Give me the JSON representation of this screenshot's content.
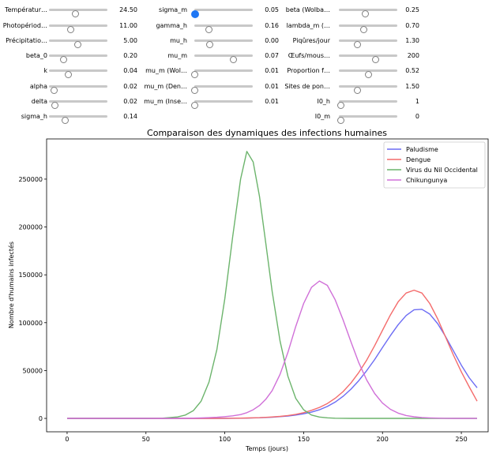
{
  "sliders": [
    {
      "label": "Températur…",
      "value": "24.50",
      "pos": 0.46,
      "active": false
    },
    {
      "label": "Photopériod…",
      "value": "11.00",
      "pos": 0.38,
      "active": false
    },
    {
      "label": "Précipitatio…",
      "value": "5.00",
      "pos": 0.5,
      "active": false
    },
    {
      "label": "beta_0",
      "value": "0.20",
      "pos": 0.26,
      "active": false
    },
    {
      "label": "k",
      "value": "0.04",
      "pos": 0.34,
      "active": false
    },
    {
      "label": "alpha",
      "value": "0.02",
      "pos": 0.1,
      "active": false
    },
    {
      "label": "delta",
      "value": "0.02",
      "pos": 0.11,
      "active": false
    },
    {
      "label": "sigma_h",
      "value": "0.14",
      "pos": 0.28,
      "active": false
    },
    {
      "label": "sigma_m",
      "value": "0.05",
      "pos": 0.02,
      "active": true
    },
    {
      "label": "gamma_h",
      "value": "0.16",
      "pos": 0.26,
      "active": false
    },
    {
      "label": "mu_h",
      "value": "0.00",
      "pos": 0.27,
      "active": false
    },
    {
      "label": "mu_m",
      "value": "0.07",
      "pos": 0.68,
      "active": false
    },
    {
      "label": "mu_m (Wol…",
      "value": "0.01",
      "pos": 0.02,
      "active": false
    },
    {
      "label": "mu_m (Den…",
      "value": "0.01",
      "pos": 0.02,
      "active": false
    },
    {
      "label": "mu_m (Inse…",
      "value": "0.01",
      "pos": 0.02,
      "active": false
    },
    {
      "label": "beta (Wolba…",
      "value": "0.25",
      "pos": 0.46,
      "active": false
    },
    {
      "label": "lambda_m (…",
      "value": "0.70",
      "pos": 0.43,
      "active": false
    },
    {
      "label": "Piqûres/jour",
      "value": "1.30",
      "pos": 0.32,
      "active": false
    },
    {
      "label": "Œufs/mous…",
      "value": "200",
      "pos": 0.63,
      "active": false
    },
    {
      "label": "Proportion f…",
      "value": "0.52",
      "pos": 0.52,
      "active": false
    },
    {
      "label": "Sites de pon…",
      "value": "1.50",
      "pos": 0.32,
      "active": false
    },
    {
      "label": "I0_h",
      "value": "1",
      "pos": 0.04,
      "active": false
    },
    {
      "label": "I0_m",
      "value": "0",
      "pos": 0.04,
      "active": false
    }
  ],
  "chart_data": {
    "type": "line",
    "title": "Comparaison des dynamiques des infections humaines",
    "xlabel": "Temps (jours)",
    "ylabel": "Nombre d'humains infectés",
    "xlim": [
      -13,
      267
    ],
    "ylim": [
      -14000,
      292000
    ],
    "xticks": [
      0,
      50,
      100,
      150,
      200,
      250
    ],
    "yticks": [
      0,
      50000,
      100000,
      150000,
      200000,
      250000
    ],
    "legend_position": "top-right",
    "x": [
      0,
      10,
      20,
      30,
      40,
      50,
      60,
      70,
      75,
      80,
      85,
      90,
      95,
      100,
      105,
      110,
      114,
      118,
      122,
      126,
      130,
      135,
      140,
      145,
      150,
      155,
      160,
      165,
      170,
      175,
      180,
      185,
      190,
      195,
      200,
      205,
      210,
      215,
      220,
      225,
      230,
      235,
      240,
      245,
      250,
      255,
      260
    ],
    "series": [
      {
        "name": "Paludisme",
        "color": "#6c6cf4",
        "values": [
          0,
          0,
          0,
          0,
          0,
          0,
          0,
          0,
          0,
          0,
          0,
          0,
          0,
          0,
          100,
          200,
          300,
          500,
          700,
          900,
          1200,
          1800,
          2500,
          3500,
          4800,
          6500,
          9000,
          12500,
          17000,
          23000,
          30500,
          39500,
          50000,
          61500,
          74000,
          86500,
          98000,
          107500,
          113500,
          114000,
          109000,
          99000,
          85500,
          70500,
          55500,
          42500,
          32000
        ]
      },
      {
        "name": "Dengue",
        "color": "#f46c6c",
        "values": [
          0,
          0,
          0,
          0,
          0,
          0,
          0,
          0,
          0,
          0,
          0,
          0,
          0,
          100,
          200,
          300,
          400,
          600,
          800,
          1100,
          1500,
          2100,
          3000,
          4200,
          6000,
          8400,
          11500,
          15500,
          21000,
          28000,
          37000,
          48000,
          61000,
          76000,
          92000,
          108000,
          122000,
          131000,
          134000,
          131000,
          120000,
          104000,
          85000,
          66000,
          48500,
          33000,
          18000
        ]
      },
      {
        "name": "Virus du Nil Occidental",
        "color": "#6cb46c",
        "values": [
          0,
          0,
          0,
          0,
          0,
          0,
          200,
          1500,
          3500,
          8000,
          18000,
          38000,
          72000,
          125000,
          190000,
          250000,
          279000,
          268000,
          232000,
          183000,
          133000,
          81000,
          44000,
          21000,
          9000,
          3500,
          1400,
          600,
          200,
          100,
          0,
          0,
          0,
          0,
          0,
          0,
          0,
          0,
          0,
          0,
          0,
          0,
          0,
          0,
          0,
          0,
          0
        ]
      },
      {
        "name": "Chikungunya",
        "color": "#d070d8",
        "values": [
          0,
          0,
          0,
          0,
          0,
          0,
          0,
          100,
          200,
          300,
          500,
          800,
          1200,
          1800,
          2700,
          4000,
          6000,
          9000,
          13500,
          20000,
          29000,
          46000,
          69000,
          96000,
          120000,
          137000,
          143500,
          139000,
          124000,
          103000,
          80000,
          58000,
          40000,
          26000,
          16000,
          9500,
          5500,
          3000,
          1700,
          900,
          500,
          300,
          100,
          0,
          0,
          0,
          0
        ]
      }
    ]
  }
}
